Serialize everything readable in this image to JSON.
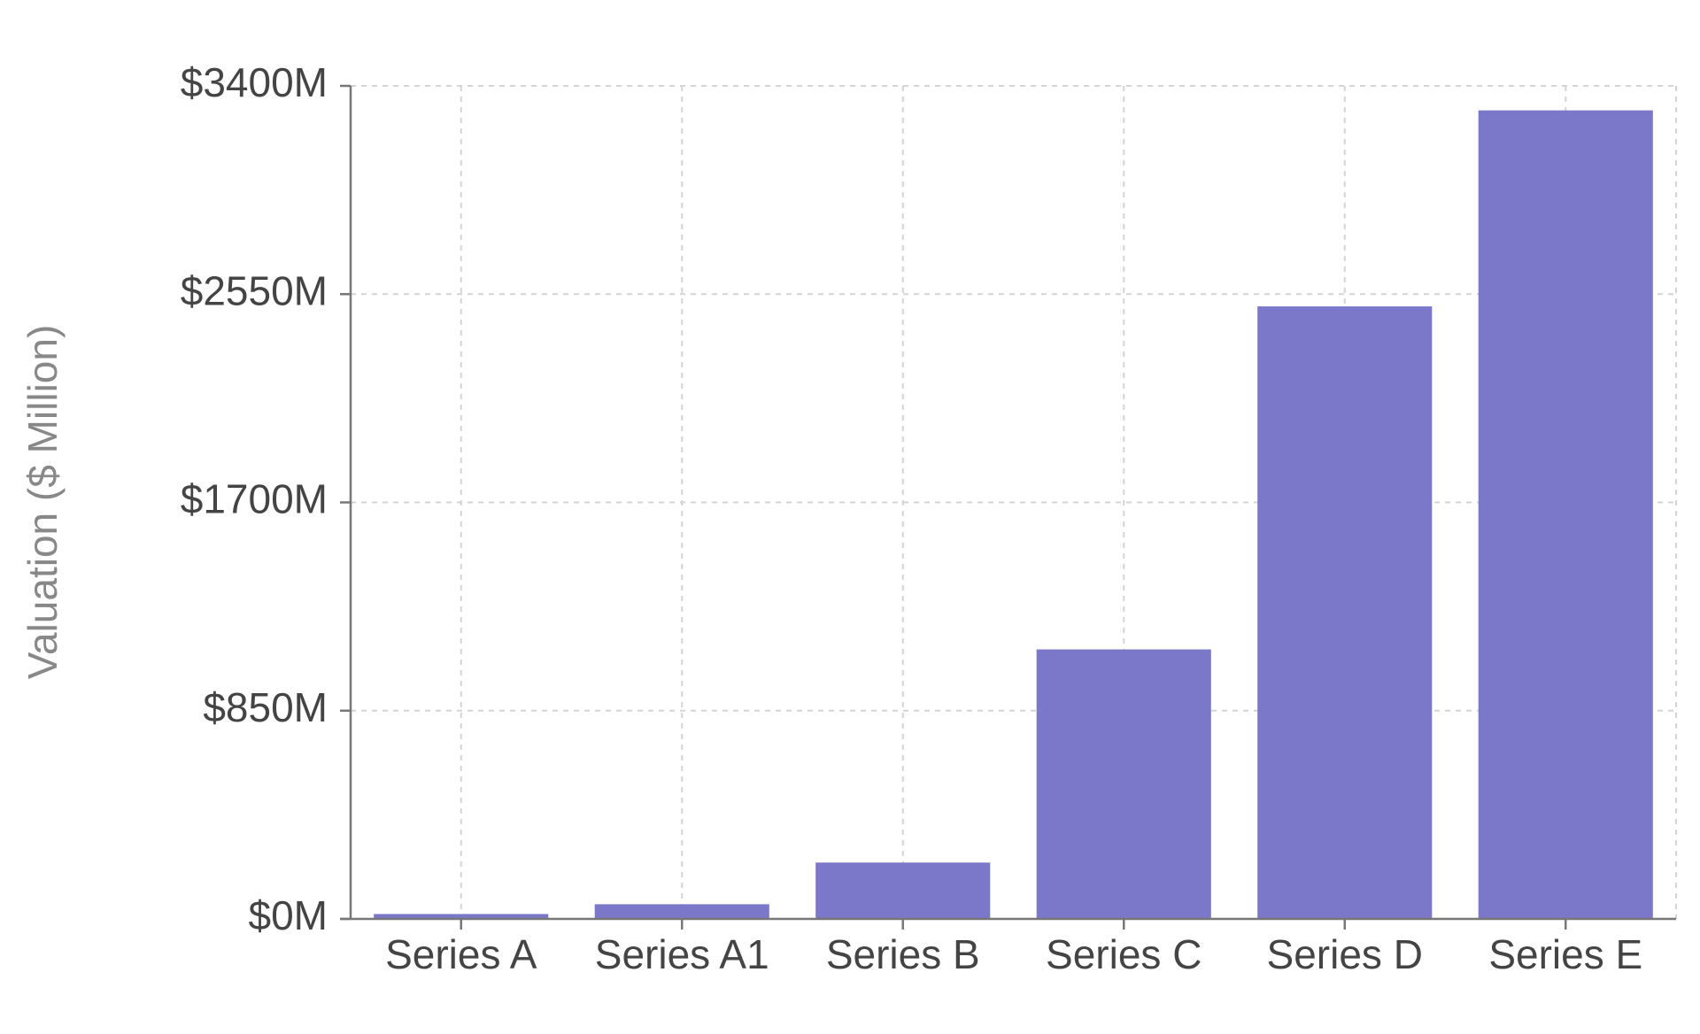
{
  "chart_data": {
    "type": "bar",
    "y_label": "Valuation ($ Million)",
    "categories": [
      "Series A",
      "Series A1",
      "Series B",
      "Series C",
      "Series D",
      "Series E"
    ],
    "values": [
      20,
      60,
      230,
      1100,
      2500,
      3300
    ],
    "color": "#7b78c9",
    "ylim": [
      0,
      3400
    ],
    "yticks": [
      {
        "value": 0,
        "label": "$0M"
      },
      {
        "value": 850,
        "label": "$850M"
      },
      {
        "value": 1700,
        "label": "$1700M"
      },
      {
        "value": 2550,
        "label": "$2550M"
      },
      {
        "value": 3400,
        "label": "$3400M"
      }
    ],
    "grid": true
  }
}
